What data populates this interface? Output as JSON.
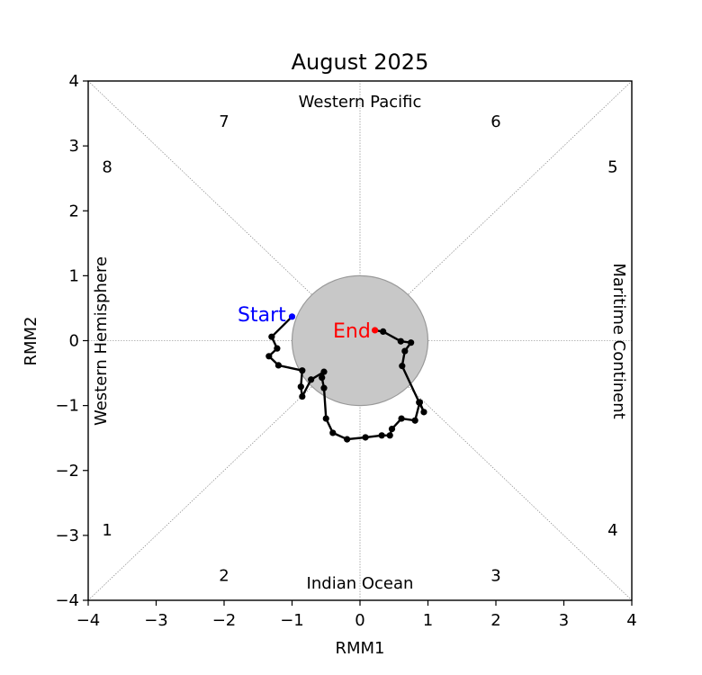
{
  "chart_data": {
    "type": "line",
    "title": "August 2025",
    "xlabel": "RMM1",
    "ylabel": "RMM2",
    "xlim": [
      -4,
      4
    ],
    "ylim": [
      -4,
      4
    ],
    "xticks": [
      "−4",
      "−3",
      "−2",
      "−1",
      "0",
      "1",
      "2",
      "3",
      "4"
    ],
    "yticks": [
      "−4",
      "−3",
      "−2",
      "−1",
      "0",
      "1",
      "2",
      "3",
      "4"
    ],
    "unit_circle_radius": 1,
    "regions": {
      "top": "Western Pacific",
      "bottom": "Indian Ocean",
      "left": "Western Hemisphere",
      "right": "Maritime Continent"
    },
    "phase_labels": [
      {
        "text": "1",
        "x": -3.72,
        "y": -2.93
      },
      {
        "text": "2",
        "x": -2.0,
        "y": -3.63
      },
      {
        "text": "3",
        "x": 2.0,
        "y": -3.63
      },
      {
        "text": "4",
        "x": 3.72,
        "y": -2.93
      },
      {
        "text": "5",
        "x": 3.72,
        "y": 2.66
      },
      {
        "text": "6",
        "x": 2.0,
        "y": 3.36
      },
      {
        "text": "7",
        "x": -2.0,
        "y": 3.36
      },
      {
        "text": "8",
        "x": -3.72,
        "y": 2.66
      }
    ],
    "start_label": "Start",
    "end_label": "End",
    "start_color": "#0000ff",
    "end_color": "#ff0000",
    "line_color": "#000000",
    "circle_fill": "#c8c8c8",
    "series": [
      {
        "x": [
          -1.0,
          -1.3,
          -1.22,
          -1.34,
          -1.2,
          -0.85,
          -0.87,
          -0.85,
          -0.72,
          -0.53,
          -0.56,
          -0.53,
          -0.5,
          -0.4,
          -0.19,
          0.08,
          0.32,
          0.44,
          0.47,
          0.61,
          0.81,
          0.88,
          0.94,
          0.87,
          0.62,
          0.66,
          0.75,
          0.6,
          0.34,
          0.22
        ],
        "y": [
          0.37,
          0.06,
          -0.12,
          -0.24,
          -0.38,
          -0.46,
          -0.71,
          -0.86,
          -0.6,
          -0.48,
          -0.57,
          -0.73,
          -1.2,
          -1.42,
          -1.52,
          -1.49,
          -1.46,
          -1.46,
          -1.36,
          -1.2,
          -1.23,
          -0.95,
          -1.1,
          -0.95,
          -0.39,
          -0.16,
          -0.03,
          -0.01,
          0.14,
          0.16
        ]
      }
    ]
  }
}
